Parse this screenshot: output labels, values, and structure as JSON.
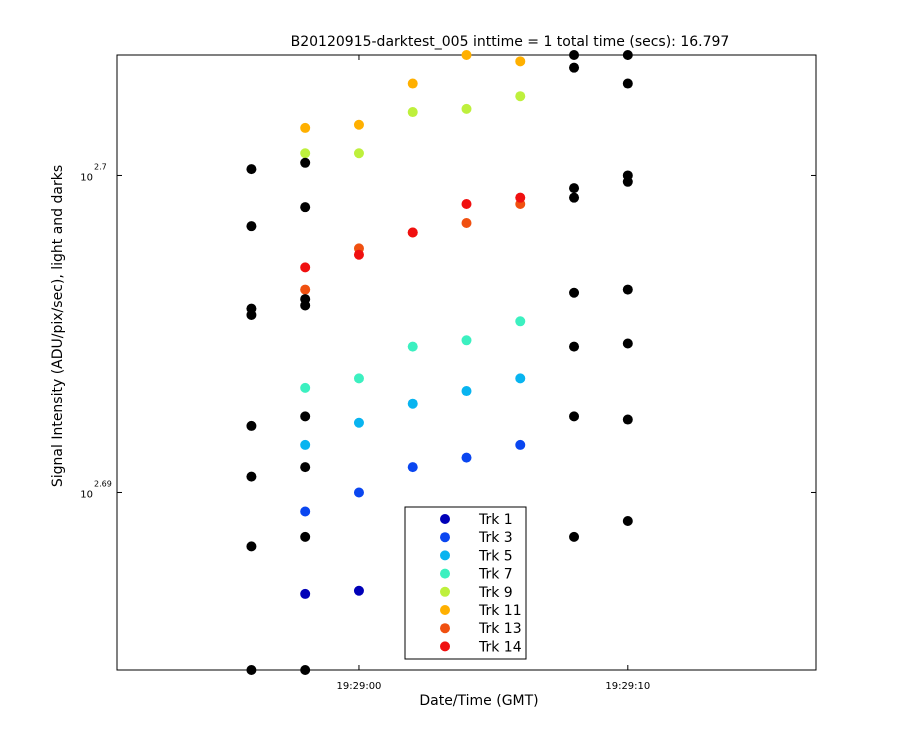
{
  "chart_data": {
    "type": "scatter",
    "title": "B20120915-darktest_005 inttime = 1 total time (secs): 16.797",
    "xlabel": "Date/Time (GMT)",
    "ylabel": "Signal Intensity (ADU/pix/sec), light and darks",
    "y_scale": "log",
    "xlim": [
      "19:28:51",
      "19:29:17"
    ],
    "ylim": [
      2.6844,
      2.7038
    ],
    "x_ticks": [
      "19:29:00",
      "19:29:10"
    ],
    "y_ticks": [
      {
        "value": 2.69,
        "base": "10",
        "exp": "2.69"
      },
      {
        "value": 2.7,
        "base": "10",
        "exp": "2.7"
      }
    ],
    "grid": false,
    "legend_position": "bottom-center",
    "series": [
      {
        "name": "Trk 1",
        "color": "#0000b8",
        "legend": true,
        "points": [
          {
            "x": "19:28:58",
            "y": 2.6868
          },
          {
            "x": "19:29:00",
            "y": 2.6869
          },
          {
            "x": "19:29:06",
            "y": 2.688
          }
        ]
      },
      {
        "name": "Trk 3",
        "color": "#0a46f0",
        "legend": true,
        "points": [
          {
            "x": "19:28:58",
            "y": 2.6894
          },
          {
            "x": "19:29:00",
            "y": 2.69
          },
          {
            "x": "19:29:02",
            "y": 2.6908
          },
          {
            "x": "19:29:04",
            "y": 2.6911
          },
          {
            "x": "19:29:06",
            "y": 2.6915
          }
        ]
      },
      {
        "name": "Trk 5",
        "color": "#08b4f0",
        "legend": true,
        "points": [
          {
            "x": "19:28:58",
            "y": 2.6915
          },
          {
            "x": "19:29:00",
            "y": 2.6922
          },
          {
            "x": "19:29:02",
            "y": 2.6928
          },
          {
            "x": "19:29:04",
            "y": 2.6932
          },
          {
            "x": "19:29:06",
            "y": 2.6936
          }
        ]
      },
      {
        "name": "Trk 7",
        "color": "#3cf0c0",
        "legend": true,
        "points": [
          {
            "x": "19:28:58",
            "y": 2.6933
          },
          {
            "x": "19:29:00",
            "y": 2.6936
          },
          {
            "x": "19:29:02",
            "y": 2.6946
          },
          {
            "x": "19:29:04",
            "y": 2.6948
          },
          {
            "x": "19:29:06",
            "y": 2.6954
          }
        ]
      },
      {
        "name": "Trk 9",
        "color": "#bef03c",
        "legend": true,
        "points": [
          {
            "x": "19:28:58",
            "y": 2.7007
          },
          {
            "x": "19:29:00",
            "y": 2.7007
          },
          {
            "x": "19:29:02",
            "y": 2.702
          },
          {
            "x": "19:29:04",
            "y": 2.7021
          },
          {
            "x": "19:29:06",
            "y": 2.7025
          }
        ]
      },
      {
        "name": "Trk 11",
        "color": "#ffb000",
        "legend": true,
        "points": [
          {
            "x": "19:28:58",
            "y": 2.7015
          },
          {
            "x": "19:29:00",
            "y": 2.7016
          },
          {
            "x": "19:29:02",
            "y": 2.7029
          },
          {
            "x": "19:29:04",
            "y": 2.7038
          },
          {
            "x": "19:29:06",
            "y": 2.7036
          }
        ]
      },
      {
        "name": "Trk 13",
        "color": "#f05010",
        "legend": true,
        "points": [
          {
            "x": "19:28:58",
            "y": 2.6964
          },
          {
            "x": "19:29:00",
            "y": 2.6977
          },
          {
            "x": "19:29:02",
            "y": 2.6982
          },
          {
            "x": "19:29:04",
            "y": 2.6985
          },
          {
            "x": "19:29:06",
            "y": 2.6991
          }
        ]
      },
      {
        "name": "Trk 14",
        "color": "#f01010",
        "legend": true,
        "points": [
          {
            "x": "19:28:58",
            "y": 2.6971
          },
          {
            "x": "19:29:00",
            "y": 2.6975
          },
          {
            "x": "19:29:02",
            "y": 2.6982
          },
          {
            "x": "19:29:04",
            "y": 2.6991
          },
          {
            "x": "19:29:06",
            "y": 2.6993
          }
        ]
      },
      {
        "name": "",
        "color": "#000000",
        "legend": false,
        "points": [
          {
            "x": "19:28:56",
            "y": 2.7002
          },
          {
            "x": "19:28:56",
            "y": 2.6984
          },
          {
            "x": "19:28:56",
            "y": 2.6958
          },
          {
            "x": "19:28:56",
            "y": 2.6956
          },
          {
            "x": "19:28:56",
            "y": 2.6921
          },
          {
            "x": "19:28:56",
            "y": 2.6905
          },
          {
            "x": "19:28:56",
            "y": 2.6883
          },
          {
            "x": "19:28:56",
            "y": 2.6844
          },
          {
            "x": "19:28:58",
            "y": 2.7004
          },
          {
            "x": "19:28:58",
            "y": 2.699
          },
          {
            "x": "19:28:58",
            "y": 2.6961
          },
          {
            "x": "19:28:58",
            "y": 2.6959
          },
          {
            "x": "19:28:58",
            "y": 2.6924
          },
          {
            "x": "19:28:58",
            "y": 2.6908
          },
          {
            "x": "19:28:58",
            "y": 2.6886
          },
          {
            "x": "19:28:58",
            "y": 2.6844
          },
          {
            "x": "19:29:08",
            "y": 2.7038
          },
          {
            "x": "19:29:08",
            "y": 2.7034
          },
          {
            "x": "19:29:08",
            "y": 2.6996
          },
          {
            "x": "19:29:08",
            "y": 2.6993
          },
          {
            "x": "19:29:08",
            "y": 2.6963
          },
          {
            "x": "19:29:08",
            "y": 2.6946
          },
          {
            "x": "19:29:08",
            "y": 2.6924
          },
          {
            "x": "19:29:08",
            "y": 2.6886
          },
          {
            "x": "19:29:10",
            "y": 2.7038
          },
          {
            "x": "19:29:10",
            "y": 2.7029
          },
          {
            "x": "19:29:10",
            "y": 2.7
          },
          {
            "x": "19:29:10",
            "y": 2.6998
          },
          {
            "x": "19:29:10",
            "y": 2.6964
          },
          {
            "x": "19:29:10",
            "y": 2.6947
          },
          {
            "x": "19:29:10",
            "y": 2.6923
          },
          {
            "x": "19:29:10",
            "y": 2.6891
          }
        ]
      }
    ]
  }
}
